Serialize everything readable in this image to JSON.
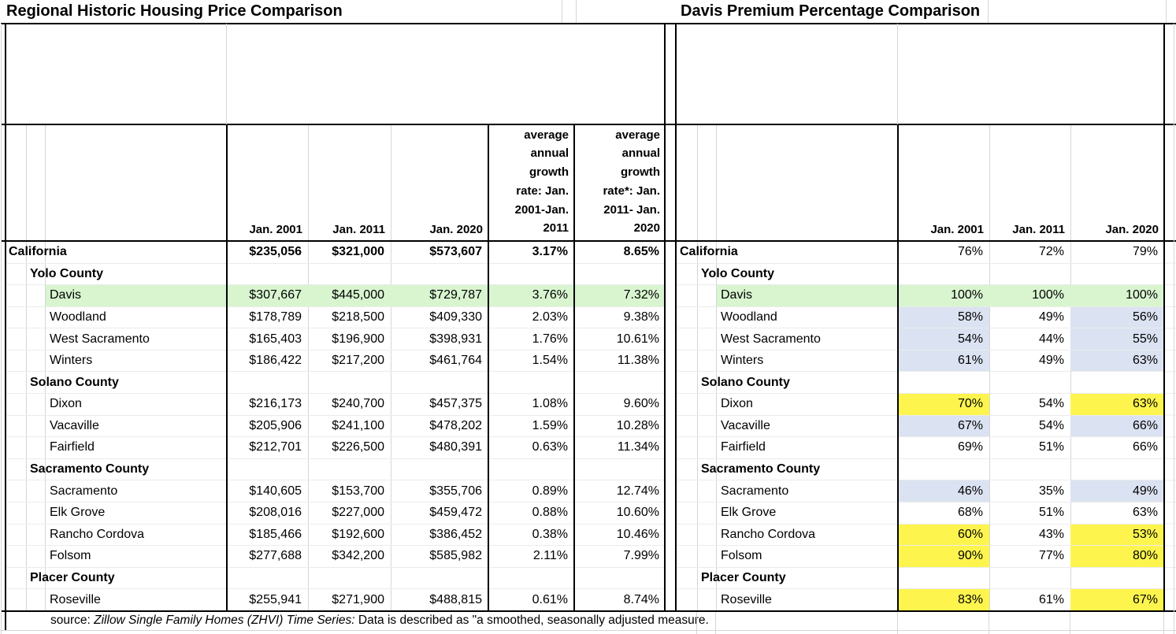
{
  "left_table": {
    "title": "Regional Historic Housing Price Comparison",
    "columns": [
      "Jan. 2001",
      "Jan. 2011",
      "Jan. 2020",
      "average\nannual\ngrowth\nrate: Jan.\n2001-Jan.\n2011",
      "average\nannual\ngrowth\nrate*: Jan.\n2011- Jan.\n2020"
    ]
  },
  "right_table": {
    "title": "Davis Premium Percentage Comparison",
    "columns": [
      "Jan. 2001",
      "Jan. 2011",
      "Jan. 2020"
    ]
  },
  "rows": [
    {
      "label": "California",
      "level": 0,
      "bold": true,
      "price_bold": true,
      "prices": [
        "$235,056",
        "$321,000",
        "$573,607",
        "3.17%",
        "8.65%"
      ],
      "pct": [
        "76%",
        "72%",
        "79%"
      ],
      "pct_hl": [
        "",
        "",
        ""
      ],
      "row_hl": ""
    },
    {
      "label": "Yolo County",
      "level": 1,
      "bold": true,
      "prices": [
        "",
        "",
        "",
        "",
        ""
      ],
      "pct": [
        "",
        "",
        ""
      ],
      "pct_hl": [
        "",
        "",
        ""
      ],
      "row_hl": ""
    },
    {
      "label": "Davis",
      "level": 2,
      "bold": false,
      "prices": [
        "$307,667",
        "$445,000",
        "$729,787",
        "3.76%",
        "7.32%"
      ],
      "pct": [
        "100%",
        "100%",
        "100%"
      ],
      "pct_hl": [
        "",
        "",
        ""
      ],
      "row_hl": "green"
    },
    {
      "label": "Woodland",
      "level": 2,
      "bold": false,
      "prices": [
        "$178,789",
        "$218,500",
        "$409,330",
        "2.03%",
        "9.38%"
      ],
      "pct": [
        "58%",
        "49%",
        "56%"
      ],
      "pct_hl": [
        "blue",
        "",
        "blue"
      ],
      "row_hl": ""
    },
    {
      "label": "West Sacramento",
      "level": 2,
      "bold": false,
      "prices": [
        "$165,403",
        "$196,900",
        "$398,931",
        "1.76%",
        "10.61%"
      ],
      "pct": [
        "54%",
        "44%",
        "55%"
      ],
      "pct_hl": [
        "blue",
        "",
        "blue"
      ],
      "row_hl": ""
    },
    {
      "label": "Winters",
      "level": 2,
      "bold": false,
      "prices": [
        "$186,422",
        "$217,200",
        "$461,764",
        "1.54%",
        "11.38%"
      ],
      "pct": [
        "61%",
        "49%",
        "63%"
      ],
      "pct_hl": [
        "blue",
        "",
        "blue"
      ],
      "row_hl": ""
    },
    {
      "label": "Solano County",
      "level": 1,
      "bold": true,
      "prices": [
        "",
        "",
        "",
        "",
        ""
      ],
      "pct": [
        "",
        "",
        ""
      ],
      "pct_hl": [
        "",
        "",
        ""
      ],
      "row_hl": ""
    },
    {
      "label": "Dixon",
      "level": 2,
      "bold": false,
      "prices": [
        "$216,173",
        "$240,700",
        "$457,375",
        "1.08%",
        "9.60%"
      ],
      "pct": [
        "70%",
        "54%",
        "63%"
      ],
      "pct_hl": [
        "yellow",
        "",
        "yellow"
      ],
      "row_hl": ""
    },
    {
      "label": "Vacaville",
      "level": 2,
      "bold": false,
      "prices": [
        "$205,906",
        "$241,100",
        "$478,202",
        "1.59%",
        "10.28%"
      ],
      "pct": [
        "67%",
        "54%",
        "66%"
      ],
      "pct_hl": [
        "blue",
        "",
        "blue"
      ],
      "row_hl": ""
    },
    {
      "label": "Fairfield",
      "level": 2,
      "bold": false,
      "prices": [
        "$212,701",
        "$226,500",
        "$480,391",
        "0.63%",
        "11.34%"
      ],
      "pct": [
        "69%",
        "51%",
        "66%"
      ],
      "pct_hl": [
        "",
        "",
        ""
      ],
      "row_hl": ""
    },
    {
      "label": "Sacramento County",
      "level": 1,
      "bold": true,
      "prices": [
        "",
        "",
        "",
        "",
        ""
      ],
      "pct": [
        "",
        "",
        ""
      ],
      "pct_hl": [
        "",
        "",
        ""
      ],
      "row_hl": ""
    },
    {
      "label": "Sacramento",
      "level": 2,
      "bold": false,
      "prices": [
        "$140,605",
        "$153,700",
        "$355,706",
        "0.89%",
        "12.74%"
      ],
      "pct": [
        "46%",
        "35%",
        "49%"
      ],
      "pct_hl": [
        "blue",
        "",
        "blue"
      ],
      "row_hl": ""
    },
    {
      "label": "Elk Grove",
      "level": 2,
      "bold": false,
      "prices": [
        "$208,016",
        "$227,000",
        "$459,472",
        "0.88%",
        "10.60%"
      ],
      "pct": [
        "68%",
        "51%",
        "63%"
      ],
      "pct_hl": [
        "",
        "",
        ""
      ],
      "row_hl": ""
    },
    {
      "label": "Rancho Cordova",
      "level": 2,
      "bold": false,
      "prices": [
        "$185,466",
        "$192,600",
        "$386,452",
        "0.38%",
        "10.46%"
      ],
      "pct": [
        "60%",
        "43%",
        "53%"
      ],
      "pct_hl": [
        "yellow",
        "",
        "yellow"
      ],
      "row_hl": ""
    },
    {
      "label": "Folsom",
      "level": 2,
      "bold": false,
      "prices": [
        "$277,688",
        "$342,200",
        "$585,982",
        "2.11%",
        "7.99%"
      ],
      "pct": [
        "90%",
        "77%",
        "80%"
      ],
      "pct_hl": [
        "yellow",
        "",
        "yellow"
      ],
      "row_hl": ""
    },
    {
      "label": "Placer County",
      "level": 1,
      "bold": true,
      "prices": [
        "",
        "",
        "",
        "",
        ""
      ],
      "pct": [
        "",
        "",
        ""
      ],
      "pct_hl": [
        "",
        "",
        ""
      ],
      "row_hl": ""
    },
    {
      "label": "Roseville",
      "level": 2,
      "bold": false,
      "prices": [
        "$255,941",
        "$271,900",
        "$488,815",
        "0.61%",
        "8.74%"
      ],
      "pct": [
        "83%",
        "61%",
        "67%"
      ],
      "pct_hl": [
        "yellow",
        "",
        "yellow"
      ],
      "row_hl": ""
    }
  ],
  "source_note": {
    "prefix": "source: ",
    "italic": "Zillow Single Family Homes  (ZHVI) Time Series:",
    "suffix": " Data is described as \"a smoothed, seasonally adjusted measure."
  },
  "colors": {
    "highlight_green": "#d8f5d0",
    "highlight_blue": "#dbe2f1",
    "highlight_yellow": "#fdf54e",
    "gridline": "#d6d6d6",
    "section_border": "#000000"
  }
}
